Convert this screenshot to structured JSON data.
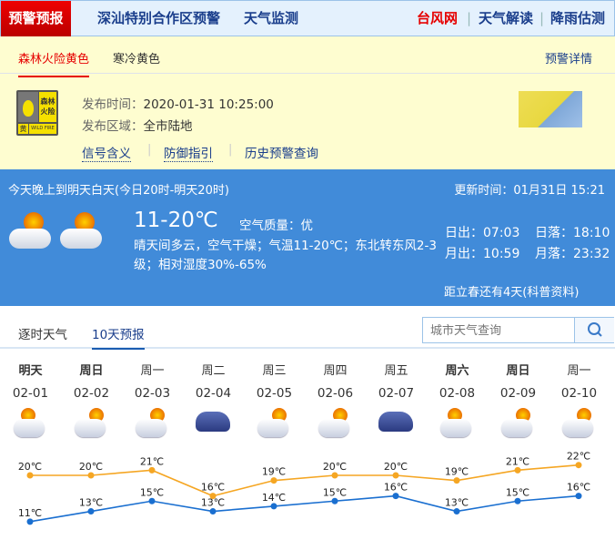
{
  "topnav": {
    "active": "预警预报",
    "items": [
      "深汕特别合作区预警",
      "天气监测"
    ],
    "right": [
      "台风网",
      "天气解读",
      "降雨估测"
    ]
  },
  "warning": {
    "tabs": [
      "森林火险黄色",
      "寒冷黄色"
    ],
    "details_link": "预警详情",
    "icon_text": {
      "title": "森林火险",
      "level": "黄",
      "en": "WILD FIRE"
    },
    "issue_time_label": "发布时间：",
    "issue_time": "2020-01-31 10:25:00",
    "area_label": "发布区域：",
    "area": "全市陆地",
    "links": [
      "信号含义",
      "防御指引",
      "历史预警查询"
    ],
    "colors": {
      "tab_active": "#e60000",
      "background": "#fefdd0"
    }
  },
  "weather": {
    "period": "今天晚上到明天白天(今日20时-明天20时)",
    "updated": "更新时间：01月31日 15:21",
    "temp": "11-20℃",
    "aqi_label": "空气质量：",
    "aqi": "优",
    "desc": "晴天间多云，空气干燥；气温11-20℃；东北转东风2-3级；相对湿度30%-65%",
    "sunrise": "日出：07:03",
    "sunset": "日落：18:10",
    "moonrise": "月出：10:59",
    "moonset": "月落：23:32",
    "solar_term": "距立春还有4天(科普资料)"
  },
  "forecast": {
    "tabs": [
      "逐时天气",
      "10天预报"
    ],
    "search_placeholder": "城市天气查询",
    "days": [
      {
        "name": "明天",
        "date": "02-01",
        "icon": "sun-cloud",
        "high": 20,
        "low": 11,
        "high_label": "20℃",
        "low_label": "11℃"
      },
      {
        "name": "周日",
        "date": "02-02",
        "icon": "partly-cloudy",
        "high": 20,
        "low": 13,
        "high_label": "20℃",
        "low_label": "13℃"
      },
      {
        "name": "周一",
        "date": "02-03",
        "icon": "partly-cloudy",
        "high": 21,
        "low": 15,
        "high_label": "21℃",
        "low_label": "15℃"
      },
      {
        "name": "周二",
        "date": "02-04",
        "icon": "overcast",
        "high": 16,
        "low": 13,
        "high_label": "16℃",
        "low_label": "13℃"
      },
      {
        "name": "周三",
        "date": "02-05",
        "icon": "partly-cloudy",
        "high": 19,
        "low": 14,
        "high_label": "19℃",
        "low_label": "14℃"
      },
      {
        "name": "周四",
        "date": "02-06",
        "icon": "partly-cloudy",
        "high": 20,
        "low": 15,
        "high_label": "20℃",
        "low_label": "15℃"
      },
      {
        "name": "周五",
        "date": "02-07",
        "icon": "overcast",
        "high": 20,
        "low": 16,
        "high_label": "20℃",
        "low_label": "16℃"
      },
      {
        "name": "周六",
        "date": "02-08",
        "icon": "sun-cloud",
        "high": 19,
        "low": 13,
        "high_label": "19℃",
        "low_label": "13℃"
      },
      {
        "name": "周日",
        "date": "02-09",
        "icon": "partly-cloudy",
        "high": 21,
        "low": 15,
        "high_label": "21℃",
        "low_label": "15℃"
      },
      {
        "name": "周一",
        "date": "02-10",
        "icon": "partly-cloudy",
        "high": 22,
        "low": 16,
        "high_label": "22℃",
        "low_label": "16℃"
      }
    ],
    "colors": {
      "high": "#f5a623",
      "low": "#1a6fd0"
    }
  }
}
